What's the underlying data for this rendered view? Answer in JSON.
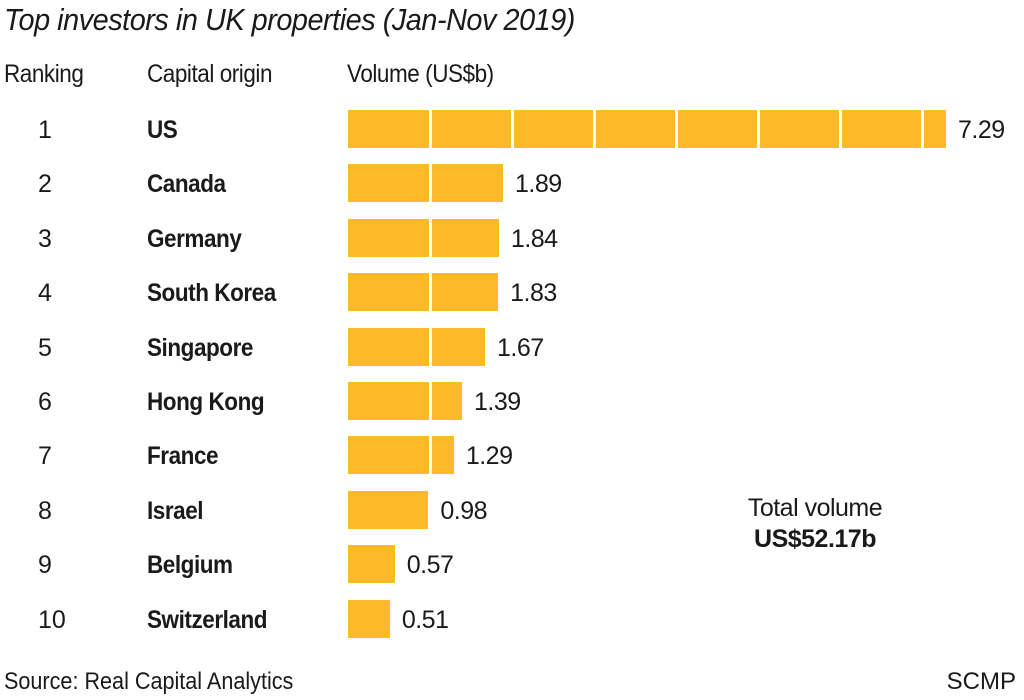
{
  "chart_data": {
    "type": "bar",
    "orientation": "horizontal",
    "title": "Top investors in UK properties (Jan-Nov 2019)",
    "columns": {
      "ranking": "Ranking",
      "origin": "Capital origin",
      "volume": "Volume (US$b)"
    },
    "xlabel": "Volume (US$b)",
    "ylabel": "Capital origin",
    "xlim": [
      0,
      7.29
    ],
    "grid": false,
    "segment_unit": 1,
    "bar_color": "#FCBA27",
    "categories": [
      "US",
      "Canada",
      "Germany",
      "South Korea",
      "Singapore",
      "Hong Kong",
      "France",
      "Israel",
      "Belgium",
      "Switzerland"
    ],
    "rows": [
      {
        "rank": "1",
        "country": "US",
        "value": 7.29,
        "label": "7.29"
      },
      {
        "rank": "2",
        "country": "Canada",
        "value": 1.89,
        "label": "1.89"
      },
      {
        "rank": "3",
        "country": "Germany",
        "value": 1.84,
        "label": "1.84"
      },
      {
        "rank": "4",
        "country": "South Korea",
        "value": 1.83,
        "label": "1.83"
      },
      {
        "rank": "5",
        "country": "Singapore",
        "value": 1.67,
        "label": "1.67"
      },
      {
        "rank": "6",
        "country": "Hong Kong",
        "value": 1.39,
        "label": "1.39"
      },
      {
        "rank": "7",
        "country": "France",
        "value": 1.29,
        "label": "1.29"
      },
      {
        "rank": "8",
        "country": "Israel",
        "value": 0.98,
        "label": "0.98"
      },
      {
        "rank": "9",
        "country": "Belgium",
        "value": 0.57,
        "label": "0.57"
      },
      {
        "rank": "10",
        "country": "Switzerland",
        "value": 0.51,
        "label": "0.51"
      }
    ],
    "annotations": {
      "total_label": "Total volume",
      "total_value": "US$52.17b"
    },
    "source": "Source: Real Capital Analytics",
    "credit": "SCMP"
  }
}
